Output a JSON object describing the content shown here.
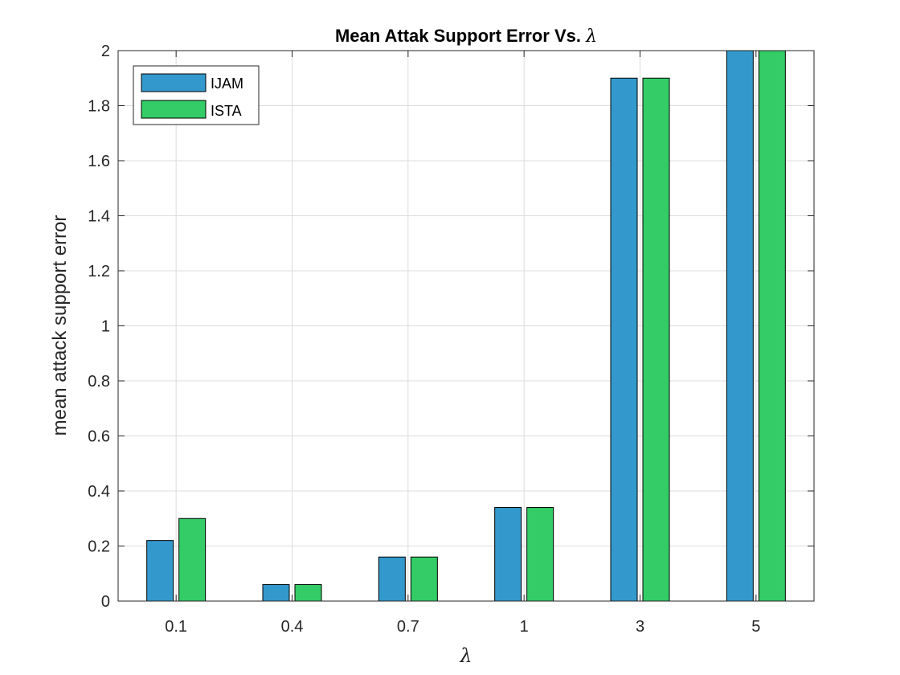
{
  "chart_data": {
    "type": "bar",
    "title": "Mean Attak Support Error Vs.",
    "title_symbol": "λ",
    "xlabel": "λ",
    "ylabel": "mean attack support error",
    "categories": [
      "0.1",
      "0.4",
      "0.7",
      "1",
      "3",
      "5"
    ],
    "series": [
      {
        "name": "IJAM",
        "values": [
          0.22,
          0.06,
          0.16,
          0.34,
          1.9,
          2.0
        ],
        "color": "#3399cc"
      },
      {
        "name": "ISTA",
        "values": [
          0.3,
          0.06,
          0.16,
          0.34,
          1.9,
          2.0
        ],
        "color": "#33cc66"
      }
    ],
    "ylim": [
      0,
      2
    ],
    "yticks": [
      "0",
      "0.2",
      "0.4",
      "0.6",
      "0.8",
      "1",
      "1.2",
      "1.4",
      "1.6",
      "1.8",
      "2"
    ],
    "grid": true,
    "legend_position": "top-left",
    "colors": {
      "axis": "#262626",
      "grid": "#dcdcdc",
      "background": "#ffffff"
    }
  }
}
